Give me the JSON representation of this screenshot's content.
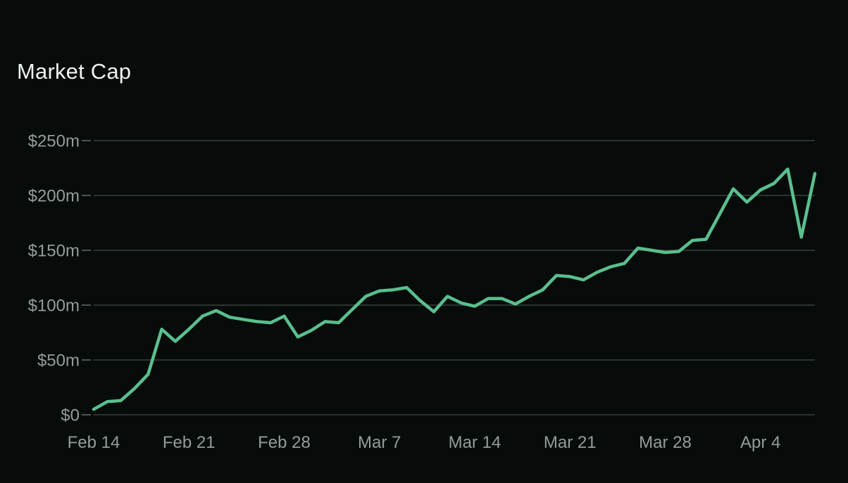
{
  "page": {
    "title": "Market Cap",
    "background_color": "#070c0b",
    "title_color": "#eef2f1"
  },
  "chart_data": {
    "type": "line",
    "title": "Market Cap",
    "series_name": "Market Cap",
    "unit": "USD millions",
    "x": [
      "Feb 14",
      "Feb 15",
      "Feb 16",
      "Feb 17",
      "Feb 18",
      "Feb 19",
      "Feb 20",
      "Feb 21",
      "Feb 22",
      "Feb 23",
      "Feb 24",
      "Feb 25",
      "Feb 26",
      "Feb 27",
      "Feb 28",
      "Mar 1",
      "Mar 2",
      "Mar 3",
      "Mar 4",
      "Mar 5",
      "Mar 6",
      "Mar 7",
      "Mar 8",
      "Mar 9",
      "Mar 10",
      "Mar 11",
      "Mar 12",
      "Mar 13",
      "Mar 14",
      "Mar 15",
      "Mar 16",
      "Mar 17",
      "Mar 18",
      "Mar 19",
      "Mar 20",
      "Mar 21",
      "Mar 22",
      "Mar 23",
      "Mar 24",
      "Mar 25",
      "Mar 26",
      "Mar 27",
      "Mar 28",
      "Mar 29",
      "Mar 30",
      "Mar 31",
      "Apr 1",
      "Apr 2",
      "Apr 3",
      "Apr 4",
      "Apr 5",
      "Apr 6",
      "Apr 7",
      "Apr 8"
    ],
    "values": [
      5,
      12,
      13,
      24,
      37,
      78,
      67,
      78,
      90,
      95,
      89,
      87,
      85,
      84,
      90,
      71,
      77,
      85,
      84,
      96,
      108,
      113,
      114,
      116,
      104,
      94,
      108,
      102,
      99,
      106,
      106,
      101,
      108,
      114,
      127,
      126,
      123,
      130,
      135,
      138,
      152,
      150,
      148,
      149,
      159,
      160,
      183,
      206,
      194,
      205,
      211,
      224,
      162,
      220
    ],
    "ylim": [
      0,
      250
    ],
    "y_ticks": [
      {
        "value": 0,
        "label": "$0"
      },
      {
        "value": 50,
        "label": "$50m"
      },
      {
        "value": 100,
        "label": "$100m"
      },
      {
        "value": 150,
        "label": "$150m"
      },
      {
        "value": 200,
        "label": "$200m"
      },
      {
        "value": 250,
        "label": "$250m"
      }
    ],
    "x_ticks": [
      {
        "index": 0,
        "label": "Feb 14"
      },
      {
        "index": 7,
        "label": "Feb 21"
      },
      {
        "index": 14,
        "label": "Feb 28"
      },
      {
        "index": 21,
        "label": "Mar 7"
      },
      {
        "index": 28,
        "label": "Mar 14"
      },
      {
        "index": 35,
        "label": "Mar 21"
      },
      {
        "index": 42,
        "label": "Mar 28"
      },
      {
        "index": 49,
        "label": "Apr 4"
      }
    ],
    "grid": "horizontal",
    "legend": "none",
    "line_color": "#5abf8e",
    "grid_color": "#2d3331",
    "tick_color": "#4d5452",
    "axis_label_color": "#949c99"
  }
}
